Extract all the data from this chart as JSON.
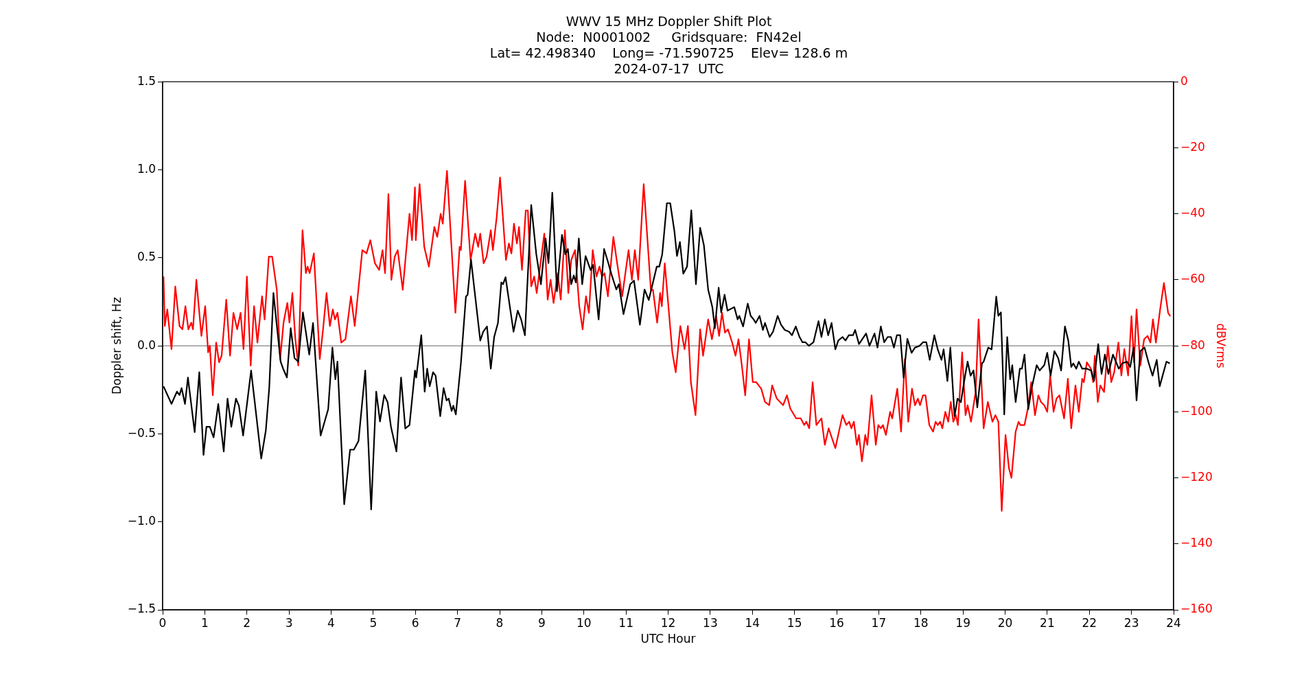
{
  "chart_data": {
    "type": "line",
    "title": "WWV 15 MHz Doppler Shift Plot",
    "subtitle": "Node:  N0001002     Gridsquare:  FN42el\nLat= 42.498340    Long= -71.590725    Elev= 128.6 m\n2024-07-17  UTC",
    "xlabel": "UTC Hour",
    "ylabel": "Doppler shift, Hz",
    "y2label": "dBVrms",
    "xlim": [
      0,
      24
    ],
    "xticks": [
      0,
      1,
      2,
      3,
      4,
      5,
      6,
      7,
      8,
      9,
      10,
      11,
      12,
      13,
      14,
      15,
      16,
      17,
      18,
      19,
      20,
      21,
      22,
      23,
      24
    ],
    "ylim": [
      -1.5,
      1.5
    ],
    "yticks": [
      {
        "value": -1.5,
        "label": "−1.5"
      },
      {
        "value": -1.0,
        "label": "−1.0"
      },
      {
        "value": -0.5,
        "label": "−0.5"
      },
      {
        "value": 0,
        "label": "0.0"
      },
      {
        "value": 0.5,
        "label": "0.5"
      },
      {
        "value": 1.0,
        "label": "1.0"
      },
      {
        "value": 1.5,
        "label": "1.5"
      }
    ],
    "y2lim": [
      -160,
      0
    ],
    "y2ticks": [
      {
        "value": -160,
        "label": "−160"
      },
      {
        "value": -140,
        "label": "−140"
      },
      {
        "value": -120,
        "label": "−120"
      },
      {
        "value": -100,
        "label": "−100"
      },
      {
        "value": -80,
        "label": "−80"
      },
      {
        "value": -60,
        "label": "−60"
      },
      {
        "value": -40,
        "label": "−40"
      },
      {
        "value": -20,
        "label": "−20"
      },
      0
    ],
    "grid": false,
    "legend": false,
    "marker": "none",
    "line_style": "solid",
    "ref_lines": [
      {
        "axis": "y",
        "value": 0,
        "color": "#808080"
      }
    ],
    "series": [
      {
        "color": "#000000",
        "axis": "y",
        "x": [
          0.02,
          0.21,
          0.34,
          0.4,
          0.45,
          0.53,
          0.6,
          0.76,
          0.87,
          0.97,
          1.04,
          1.12,
          1.21,
          1.32,
          1.45,
          1.54,
          1.63,
          1.74,
          1.81,
          1.91,
          2.1,
          2.34,
          2.45,
          2.53,
          2.63,
          2.8,
          2.86,
          2.95,
          3.04,
          3.13,
          3.22,
          3.33,
          3.48,
          3.57,
          3.75,
          3.87,
          3.93,
          4.03,
          4.1,
          4.15,
          4.31,
          4.45,
          4.54,
          4.65,
          4.81,
          4.95,
          5.07,
          5.16,
          5.26,
          5.34,
          5.42,
          5.55,
          5.66,
          5.76,
          5.86,
          5.99,
          6.02,
          6.14,
          6.22,
          6.28,
          6.34,
          6.42,
          6.48,
          6.59,
          6.67,
          6.74,
          6.79,
          6.86,
          6.9,
          6.96,
          7.08,
          7.2,
          7.24,
          7.32,
          7.54,
          7.61,
          7.7,
          7.79,
          7.87,
          7.96,
          8.04,
          8.08,
          8.14,
          8.33,
          8.43,
          8.51,
          8.6,
          8.75,
          8.87,
          8.98,
          9.09,
          9.16,
          9.25,
          9.36,
          9.48,
          9.56,
          9.62,
          9.7,
          9.76,
          9.81,
          9.88,
          9.96,
          10.04,
          10.16,
          10.22,
          10.35,
          10.48,
          10.58,
          10.65,
          10.77,
          10.83,
          10.94,
          11.1,
          11.19,
          11.33,
          11.44,
          11.54,
          11.73,
          11.79,
          11.86,
          11.97,
          12.05,
          12.15,
          12.21,
          12.28,
          12.36,
          12.45,
          12.55,
          12.66,
          12.76,
          12.85,
          12.95,
          13.05,
          13.11,
          13.2,
          13.26,
          13.34,
          13.41,
          13.49,
          13.57,
          13.65,
          13.69,
          13.78,
          13.89,
          13.96,
          14.03,
          14.08,
          14.17,
          14.25,
          14.3,
          14.41,
          14.49,
          14.6,
          14.68,
          14.77,
          14.87,
          14.94,
          15.03,
          15.12,
          15.19,
          15.26,
          15.34,
          15.45,
          15.57,
          15.64,
          15.72,
          15.8,
          15.88,
          15.97,
          16.04,
          16.14,
          16.21,
          16.29,
          16.39,
          16.44,
          16.53,
          16.7,
          16.78,
          16.9,
          16.97,
          17.05,
          17.13,
          17.21,
          17.29,
          17.36,
          17.43,
          17.51,
          17.59,
          17.68,
          17.78,
          17.86,
          17.97,
          18.05,
          18.13,
          18.21,
          18.32,
          18.4,
          18.49,
          18.54,
          18.63,
          18.7,
          18.8,
          18.87,
          18.95,
          19.05,
          19.11,
          19.18,
          19.25,
          19.34,
          19.45,
          19.49,
          19.6,
          19.68,
          19.79,
          19.84,
          19.9,
          19.98,
          20.05,
          20.12,
          20.17,
          20.25,
          20.35,
          20.4,
          20.46,
          20.55,
          20.63,
          20.75,
          20.82,
          20.93,
          21.0,
          21.08,
          21.17,
          21.26,
          21.33,
          21.42,
          21.5,
          21.57,
          21.62,
          21.69,
          21.75,
          21.83,
          21.94,
          22.04,
          22.11,
          22.21,
          22.29,
          22.37,
          22.45,
          22.56,
          22.7,
          22.78,
          22.89,
          22.97,
          23.05,
          23.12,
          23.21,
          23.31,
          23.4,
          23.5,
          23.6,
          23.67,
          23.83,
          23.91
        ],
        "values": [
          -0.23,
          -0.33,
          -0.26,
          -0.28,
          -0.24,
          -0.33,
          -0.18,
          -0.49,
          -0.15,
          -0.62,
          -0.46,
          -0.46,
          -0.52,
          -0.33,
          -0.6,
          -0.3,
          -0.46,
          -0.3,
          -0.34,
          -0.51,
          -0.14,
          -0.64,
          -0.48,
          -0.24,
          0.3,
          -0.09,
          -0.13,
          -0.18,
          0.1,
          -0.07,
          -0.09,
          0.19,
          -0.05,
          0.13,
          -0.51,
          -0.41,
          -0.36,
          -0.01,
          -0.19,
          -0.09,
          -0.9,
          -0.59,
          -0.59,
          -0.54,
          -0.14,
          -0.93,
          -0.26,
          -0.43,
          -0.28,
          -0.32,
          -0.46,
          -0.6,
          -0.18,
          -0.47,
          -0.45,
          -0.14,
          -0.18,
          0.06,
          -0.26,
          -0.13,
          -0.23,
          -0.15,
          -0.17,
          -0.4,
          -0.24,
          -0.31,
          -0.3,
          -0.37,
          -0.34,
          -0.39,
          -0.1,
          0.28,
          0.29,
          0.49,
          0.03,
          0.08,
          0.11,
          -0.13,
          0.05,
          0.13,
          0.36,
          0.35,
          0.39,
          0.08,
          0.2,
          0.15,
          0.06,
          0.8,
          0.52,
          0.35,
          0.61,
          0.47,
          0.87,
          0.31,
          0.63,
          0.52,
          0.55,
          0.35,
          0.4,
          0.36,
          0.61,
          0.35,
          0.51,
          0.43,
          0.46,
          0.15,
          0.55,
          0.47,
          0.41,
          0.32,
          0.35,
          0.18,
          0.35,
          0.37,
          0.12,
          0.32,
          0.26,
          0.45,
          0.45,
          0.52,
          0.81,
          0.81,
          0.65,
          0.51,
          0.59,
          0.41,
          0.45,
          0.77,
          0.35,
          0.67,
          0.57,
          0.32,
          0.22,
          0.1,
          0.33,
          0.19,
          0.29,
          0.2,
          0.21,
          0.22,
          0.15,
          0.17,
          0.11,
          0.24,
          0.17,
          0.15,
          0.13,
          0.17,
          0.09,
          0.13,
          0.05,
          0.08,
          0.17,
          0.12,
          0.09,
          0.08,
          0.06,
          0.11,
          0.05,
          0.02,
          0.02,
          0.0,
          0.02,
          0.14,
          0.05,
          0.15,
          0.06,
          0.13,
          -0.02,
          0.03,
          0.05,
          0.03,
          0.06,
          0.06,
          0.09,
          0.01,
          0.07,
          0.0,
          0.07,
          -0.01,
          0.11,
          0.02,
          0.05,
          0.05,
          -0.01,
          0.06,
          0.06,
          -0.18,
          0.04,
          -0.04,
          -0.01,
          0.0,
          0.02,
          0.02,
          -0.08,
          0.06,
          -0.02,
          -0.08,
          -0.02,
          -0.2,
          -0.01,
          -0.4,
          -0.3,
          -0.32,
          -0.17,
          -0.09,
          -0.17,
          -0.14,
          -0.35,
          -0.1,
          -0.09,
          -0.01,
          -0.02,
          0.28,
          0.17,
          0.19,
          -0.39,
          0.05,
          -0.19,
          -0.11,
          -0.32,
          -0.13,
          -0.13,
          -0.05,
          -0.36,
          -0.24,
          -0.11,
          -0.14,
          -0.11,
          -0.04,
          -0.17,
          -0.03,
          -0.07,
          -0.14,
          0.11,
          0.03,
          -0.12,
          -0.1,
          -0.13,
          -0.09,
          -0.13,
          -0.13,
          -0.14,
          -0.2,
          0.01,
          -0.16,
          -0.05,
          -0.16,
          -0.05,
          -0.13,
          -0.1,
          -0.09,
          -0.12,
          -0.01,
          -0.31,
          -0.03,
          -0.01,
          -0.09,
          -0.17,
          -0.08,
          -0.23,
          -0.09,
          -0.1
        ]
      },
      {
        "color": "#ff0000",
        "axis": "y2",
        "x": [
          0.02,
          0.05,
          0.11,
          0.21,
          0.3,
          0.4,
          0.47,
          0.54,
          0.61,
          0.68,
          0.72,
          0.8,
          0.92,
          1.01,
          1.08,
          1.12,
          1.19,
          1.27,
          1.34,
          1.4,
          1.51,
          1.6,
          1.68,
          1.77,
          1.85,
          1.92,
          2.0,
          2.09,
          2.17,
          2.25,
          2.36,
          2.42,
          2.52,
          2.55,
          2.6,
          2.71,
          2.79,
          2.87,
          2.96,
          3.01,
          3.08,
          3.15,
          3.22,
          3.32,
          3.4,
          3.44,
          3.49,
          3.59,
          3.73,
          3.8,
          3.89,
          3.97,
          4.04,
          4.09,
          4.15,
          4.24,
          4.34,
          4.47,
          4.56,
          4.74,
          4.84,
          4.93,
          5.04,
          5.14,
          5.22,
          5.28,
          5.36,
          5.43,
          5.51,
          5.58,
          5.7,
          5.86,
          5.92,
          5.99,
          6.01,
          6.1,
          6.21,
          6.32,
          6.45,
          6.52,
          6.6,
          6.65,
          6.75,
          6.95,
          7.05,
          7.08,
          7.18,
          7.31,
          7.42,
          7.49,
          7.54,
          7.62,
          7.69,
          7.79,
          7.84,
          7.93,
          8.01,
          8.15,
          8.22,
          8.28,
          8.34,
          8.41,
          8.46,
          8.53,
          8.62,
          8.67,
          8.75,
          8.82,
          8.88,
          9.06,
          9.14,
          9.21,
          9.28,
          9.38,
          9.45,
          9.55,
          9.63,
          9.7,
          9.79,
          9.89,
          9.97,
          10.05,
          10.12,
          10.21,
          10.3,
          10.37,
          10.43,
          10.49,
          10.57,
          10.7,
          10.79,
          10.91,
          11.06,
          11.14,
          11.21,
          11.29,
          11.42,
          11.59,
          11.64,
          11.74,
          11.81,
          11.85,
          11.92,
          12.1,
          12.18,
          12.29,
          12.39,
          12.47,
          12.54,
          12.65,
          12.76,
          12.83,
          12.95,
          13.04,
          13.14,
          13.21,
          13.28,
          13.35,
          13.42,
          13.52,
          13.6,
          13.67,
          13.75,
          13.83,
          13.92,
          14.01,
          14.09,
          14.21,
          14.3,
          14.4,
          14.47,
          14.58,
          14.73,
          14.82,
          14.9,
          15.04,
          15.15,
          15.23,
          15.28,
          15.35,
          15.43,
          15.52,
          15.64,
          15.72,
          15.81,
          15.97,
          16.14,
          16.23,
          16.3,
          16.35,
          16.41,
          16.48,
          16.53,
          16.6,
          16.68,
          16.73,
          16.83,
          16.93,
          16.99,
          17.05,
          17.1,
          17.17,
          17.27,
          17.32,
          17.44,
          17.53,
          17.62,
          17.7,
          17.79,
          17.86,
          17.93,
          17.98,
          18.05,
          18.11,
          18.2,
          18.29,
          18.35,
          18.4,
          18.46,
          18.51,
          18.58,
          18.65,
          18.71,
          18.77,
          18.83,
          18.88,
          18.98,
          19.06,
          19.11,
          19.19,
          19.3,
          19.37,
          19.49,
          19.59,
          19.7,
          19.77,
          19.84,
          19.92,
          20.01,
          20.09,
          20.15,
          20.25,
          20.32,
          20.36,
          20.46,
          20.54,
          20.62,
          20.71,
          20.79,
          20.85,
          20.93,
          21.0,
          21.07,
          21.15,
          21.22,
          21.29,
          21.4,
          21.49,
          21.57,
          21.67,
          21.75,
          21.83,
          21.87,
          21.94,
          22.04,
          22.09,
          22.13,
          22.2,
          22.26,
          22.35,
          22.44,
          22.52,
          22.59,
          22.69,
          22.76,
          22.83,
          22.92,
          23.0,
          23.06,
          23.12,
          23.21,
          23.3,
          23.38,
          23.45,
          23.51,
          23.58,
          23.68,
          23.77,
          23.87,
          23.92
        ],
        "values": [
          -59,
          -74,
          -69,
          -81,
          -62,
          -74,
          -75,
          -68,
          -75,
          -73,
          -75,
          -60,
          -77,
          -68,
          -82,
          -80,
          -95,
          -79,
          -85,
          -83,
          -66,
          -83,
          -70,
          -75,
          -70,
          -81,
          -59,
          -86,
          -68,
          -79,
          -65,
          -72,
          -53,
          -53,
          -53,
          -63,
          -84,
          -73,
          -67,
          -73,
          -64,
          -78,
          -86,
          -45,
          -58,
          -56,
          -58,
          -52,
          -84,
          -76,
          -64,
          -74,
          -69,
          -72,
          -70,
          -79,
          -78,
          -65,
          -74,
          -51,
          -52,
          -48,
          -55,
          -57,
          -51,
          -58,
          -34,
          -60,
          -53,
          -51,
          -63,
          -40,
          -48,
          -32,
          -48,
          -31,
          -50,
          -56,
          -44,
          -47,
          -40,
          -43,
          -27,
          -70,
          -50,
          -51,
          -30,
          -54,
          -46,
          -50,
          -46,
          -55,
          -53,
          -45,
          -51,
          -41,
          -29,
          -54,
          -49,
          -52,
          -43,
          -49,
          -44,
          -57,
          -39,
          -39,
          -62,
          -59,
          -64,
          -46,
          -66,
          -60,
          -67,
          -58,
          -66,
          -45,
          -64,
          -54,
          -51,
          -68,
          -75,
          -65,
          -70,
          -51,
          -59,
          -56,
          -59,
          -58,
          -65,
          -47,
          -55,
          -65,
          -51,
          -60,
          -51,
          -60,
          -31,
          -63,
          -63,
          -73,
          -64,
          -68,
          -55,
          -82,
          -88,
          -74,
          -81,
          -74,
          -91,
          -101,
          -75,
          -83,
          -72,
          -78,
          -71,
          -77,
          -70,
          -76,
          -75,
          -79,
          -83,
          -78,
          -86,
          -95,
          -78,
          -91,
          -91,
          -93,
          -97,
          -98,
          -92,
          -96,
          -98,
          -95,
          -99,
          -102,
          -102,
          -104,
          -103,
          -105,
          -91,
          -104,
          -102,
          -110,
          -105,
          -111,
          -101,
          -104,
          -103,
          -105,
          -103,
          -110,
          -107,
          -115,
          -107,
          -110,
          -95,
          -110,
          -104,
          -105,
          -104,
          -107,
          -100,
          -102,
          -93,
          -106,
          -84,
          -103,
          -93,
          -98,
          -96,
          -98,
          -95,
          -95,
          -104,
          -106,
          -103,
          -104,
          -103,
          -105,
          -100,
          -103,
          -97,
          -103,
          -101,
          -104,
          -82,
          -101,
          -98,
          -103,
          -94,
          -72,
          -105,
          -97,
          -103,
          -101,
          -103,
          -130,
          -107,
          -117,
          -120,
          -106,
          -103,
          -104,
          -104,
          -99,
          -91,
          -101,
          -95,
          -97,
          -98,
          -100,
          -89,
          -100,
          -96,
          -95,
          -102,
          -90,
          -105,
          -92,
          -100,
          -90,
          -91,
          -85,
          -87,
          -91,
          -83,
          -97,
          -92,
          -94,
          -80,
          -91,
          -88,
          -79,
          -89,
          -81,
          -89,
          -71,
          -85,
          -69,
          -86,
          -78,
          -77,
          -79,
          -72,
          -79,
          -69,
          -61,
          -70,
          -71
        ]
      }
    ]
  }
}
